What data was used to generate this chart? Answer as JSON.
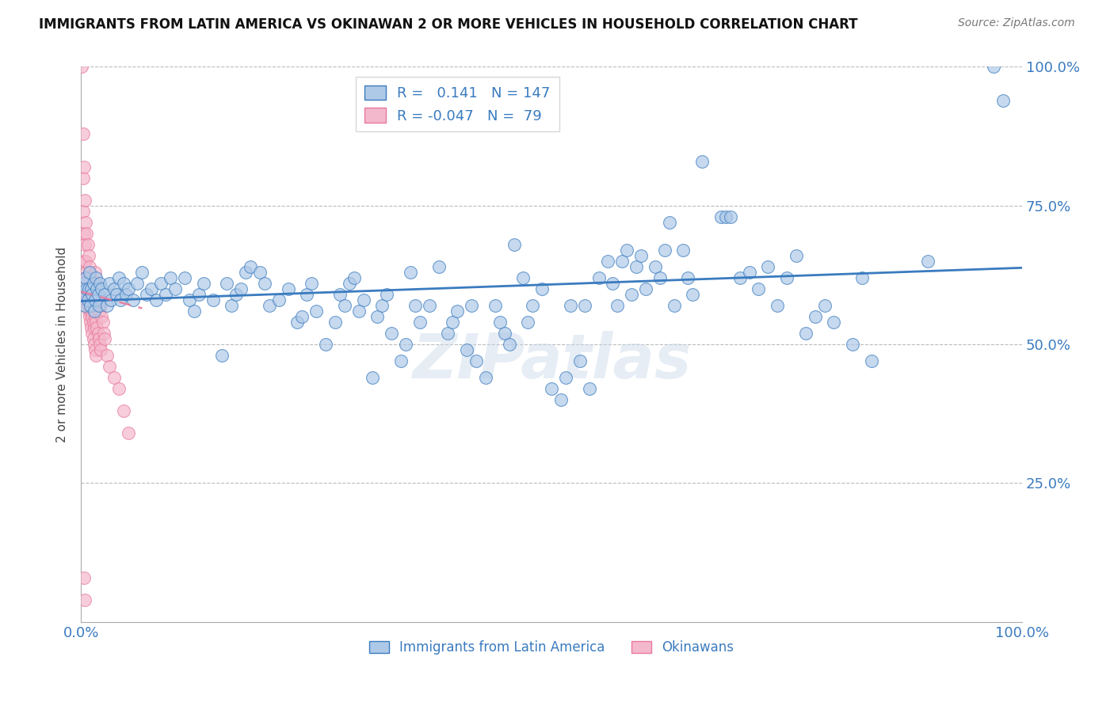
{
  "title": "IMMIGRANTS FROM LATIN AMERICA VS OKINAWAN 2 OR MORE VEHICLES IN HOUSEHOLD CORRELATION CHART",
  "source": "Source: ZipAtlas.com",
  "ylabel": "2 or more Vehicles in Household",
  "xlim": [
    0,
    1.0
  ],
  "ylim": [
    0,
    1.0
  ],
  "xticks": [
    0.0,
    0.25,
    0.5,
    0.75,
    1.0
  ],
  "xticklabels": [
    "0.0%",
    "",
    "",
    "",
    "100.0%"
  ],
  "ytick_positions": [
    0.25,
    0.5,
    0.75,
    1.0
  ],
  "ytick_labels": [
    "25.0%",
    "50.0%",
    "75.0%",
    "100.0%"
  ],
  "blue_R": 0.141,
  "blue_N": 147,
  "pink_R": -0.047,
  "pink_N": 79,
  "blue_color": "#aec9e8",
  "pink_color": "#f4b8cc",
  "blue_line_color": "#3a7bbf",
  "pink_line_color": "#e8799a",
  "watermark": "ZIPatlas",
  "legend_labels": [
    "Immigrants from Latin America",
    "Okinawans"
  ],
  "blue_scatter": [
    [
      0.002,
      0.61
    ],
    [
      0.003,
      0.59
    ],
    [
      0.004,
      0.57
    ],
    [
      0.005,
      0.62
    ],
    [
      0.006,
      0.6
    ],
    [
      0.007,
      0.58
    ],
    [
      0.008,
      0.6
    ],
    [
      0.009,
      0.63
    ],
    [
      0.01,
      0.57
    ],
    [
      0.011,
      0.6
    ],
    [
      0.012,
      0.59
    ],
    [
      0.013,
      0.61
    ],
    [
      0.014,
      0.56
    ],
    [
      0.015,
      0.58
    ],
    [
      0.016,
      0.62
    ],
    [
      0.017,
      0.6
    ],
    [
      0.018,
      0.59
    ],
    [
      0.019,
      0.57
    ],
    [
      0.02,
      0.61
    ],
    [
      0.022,
      0.6
    ],
    [
      0.025,
      0.59
    ],
    [
      0.028,
      0.57
    ],
    [
      0.03,
      0.61
    ],
    [
      0.032,
      0.58
    ],
    [
      0.035,
      0.6
    ],
    [
      0.038,
      0.59
    ],
    [
      0.04,
      0.62
    ],
    [
      0.042,
      0.58
    ],
    [
      0.045,
      0.61
    ],
    [
      0.048,
      0.59
    ],
    [
      0.05,
      0.6
    ],
    [
      0.055,
      0.58
    ],
    [
      0.06,
      0.61
    ],
    [
      0.065,
      0.63
    ],
    [
      0.07,
      0.59
    ],
    [
      0.075,
      0.6
    ],
    [
      0.08,
      0.58
    ],
    [
      0.085,
      0.61
    ],
    [
      0.09,
      0.59
    ],
    [
      0.095,
      0.62
    ],
    [
      0.1,
      0.6
    ],
    [
      0.11,
      0.62
    ],
    [
      0.115,
      0.58
    ],
    [
      0.12,
      0.56
    ],
    [
      0.125,
      0.59
    ],
    [
      0.13,
      0.61
    ],
    [
      0.14,
      0.58
    ],
    [
      0.15,
      0.48
    ],
    [
      0.155,
      0.61
    ],
    [
      0.16,
      0.57
    ],
    [
      0.165,
      0.59
    ],
    [
      0.17,
      0.6
    ],
    [
      0.175,
      0.63
    ],
    [
      0.18,
      0.64
    ],
    [
      0.19,
      0.63
    ],
    [
      0.195,
      0.61
    ],
    [
      0.2,
      0.57
    ],
    [
      0.21,
      0.58
    ],
    [
      0.22,
      0.6
    ],
    [
      0.23,
      0.54
    ],
    [
      0.235,
      0.55
    ],
    [
      0.24,
      0.59
    ],
    [
      0.245,
      0.61
    ],
    [
      0.25,
      0.56
    ],
    [
      0.26,
      0.5
    ],
    [
      0.27,
      0.54
    ],
    [
      0.275,
      0.59
    ],
    [
      0.28,
      0.57
    ],
    [
      0.285,
      0.61
    ],
    [
      0.29,
      0.62
    ],
    [
      0.295,
      0.56
    ],
    [
      0.3,
      0.58
    ],
    [
      0.31,
      0.44
    ],
    [
      0.315,
      0.55
    ],
    [
      0.32,
      0.57
    ],
    [
      0.325,
      0.59
    ],
    [
      0.33,
      0.52
    ],
    [
      0.34,
      0.47
    ],
    [
      0.345,
      0.5
    ],
    [
      0.35,
      0.63
    ],
    [
      0.355,
      0.57
    ],
    [
      0.36,
      0.54
    ],
    [
      0.37,
      0.57
    ],
    [
      0.38,
      0.64
    ],
    [
      0.39,
      0.52
    ],
    [
      0.395,
      0.54
    ],
    [
      0.4,
      0.56
    ],
    [
      0.41,
      0.49
    ],
    [
      0.415,
      0.57
    ],
    [
      0.42,
      0.47
    ],
    [
      0.43,
      0.44
    ],
    [
      0.44,
      0.57
    ],
    [
      0.445,
      0.54
    ],
    [
      0.45,
      0.52
    ],
    [
      0.455,
      0.5
    ],
    [
      0.46,
      0.68
    ],
    [
      0.47,
      0.62
    ],
    [
      0.475,
      0.54
    ],
    [
      0.48,
      0.57
    ],
    [
      0.49,
      0.6
    ],
    [
      0.5,
      0.42
    ],
    [
      0.51,
      0.4
    ],
    [
      0.515,
      0.44
    ],
    [
      0.52,
      0.57
    ],
    [
      0.53,
      0.47
    ],
    [
      0.535,
      0.57
    ],
    [
      0.54,
      0.42
    ],
    [
      0.55,
      0.62
    ],
    [
      0.56,
      0.65
    ],
    [
      0.565,
      0.61
    ],
    [
      0.57,
      0.57
    ],
    [
      0.575,
      0.65
    ],
    [
      0.58,
      0.67
    ],
    [
      0.585,
      0.59
    ],
    [
      0.59,
      0.64
    ],
    [
      0.595,
      0.66
    ],
    [
      0.6,
      0.6
    ],
    [
      0.61,
      0.64
    ],
    [
      0.615,
      0.62
    ],
    [
      0.62,
      0.67
    ],
    [
      0.625,
      0.72
    ],
    [
      0.63,
      0.57
    ],
    [
      0.64,
      0.67
    ],
    [
      0.645,
      0.62
    ],
    [
      0.65,
      0.59
    ],
    [
      0.66,
      0.83
    ],
    [
      0.68,
      0.73
    ],
    [
      0.685,
      0.73
    ],
    [
      0.69,
      0.73
    ],
    [
      0.7,
      0.62
    ],
    [
      0.71,
      0.63
    ],
    [
      0.72,
      0.6
    ],
    [
      0.73,
      0.64
    ],
    [
      0.74,
      0.57
    ],
    [
      0.75,
      0.62
    ],
    [
      0.76,
      0.66
    ],
    [
      0.77,
      0.52
    ],
    [
      0.78,
      0.55
    ],
    [
      0.79,
      0.57
    ],
    [
      0.8,
      0.54
    ],
    [
      0.82,
      0.5
    ],
    [
      0.83,
      0.62
    ],
    [
      0.84,
      0.47
    ],
    [
      0.9,
      0.65
    ],
    [
      0.97,
      1.0
    ],
    [
      0.98,
      0.94
    ]
  ],
  "pink_scatter": [
    [
      0.001,
      1.0
    ],
    [
      0.002,
      0.88
    ],
    [
      0.002,
      0.8
    ],
    [
      0.002,
      0.74
    ],
    [
      0.003,
      0.82
    ],
    [
      0.003,
      0.7
    ],
    [
      0.003,
      0.65
    ],
    [
      0.004,
      0.76
    ],
    [
      0.004,
      0.68
    ],
    [
      0.004,
      0.62
    ],
    [
      0.005,
      0.72
    ],
    [
      0.005,
      0.65
    ],
    [
      0.005,
      0.59
    ],
    [
      0.006,
      0.7
    ],
    [
      0.006,
      0.63
    ],
    [
      0.006,
      0.58
    ],
    [
      0.007,
      0.68
    ],
    [
      0.007,
      0.62
    ],
    [
      0.007,
      0.57
    ],
    [
      0.008,
      0.66
    ],
    [
      0.008,
      0.6
    ],
    [
      0.008,
      0.56
    ],
    [
      0.009,
      0.64
    ],
    [
      0.009,
      0.59
    ],
    [
      0.009,
      0.55
    ],
    [
      0.01,
      0.62
    ],
    [
      0.01,
      0.57
    ],
    [
      0.01,
      0.54
    ],
    [
      0.011,
      0.6
    ],
    [
      0.011,
      0.56
    ],
    [
      0.011,
      0.53
    ],
    [
      0.012,
      0.59
    ],
    [
      0.012,
      0.55
    ],
    [
      0.012,
      0.52
    ],
    [
      0.013,
      0.57
    ],
    [
      0.013,
      0.54
    ],
    [
      0.013,
      0.51
    ],
    [
      0.014,
      0.56
    ],
    [
      0.014,
      0.53
    ],
    [
      0.014,
      0.5
    ],
    [
      0.015,
      0.63
    ],
    [
      0.015,
      0.55
    ],
    [
      0.015,
      0.49
    ],
    [
      0.016,
      0.61
    ],
    [
      0.016,
      0.54
    ],
    [
      0.016,
      0.48
    ],
    [
      0.017,
      0.59
    ],
    [
      0.017,
      0.53
    ],
    [
      0.018,
      0.57
    ],
    [
      0.018,
      0.52
    ],
    [
      0.019,
      0.56
    ],
    [
      0.019,
      0.51
    ],
    [
      0.02,
      0.58
    ],
    [
      0.02,
      0.5
    ],
    [
      0.021,
      0.57
    ],
    [
      0.021,
      0.49
    ],
    [
      0.022,
      0.55
    ],
    [
      0.023,
      0.54
    ],
    [
      0.024,
      0.52
    ],
    [
      0.025,
      0.51
    ],
    [
      0.028,
      0.48
    ],
    [
      0.03,
      0.46
    ],
    [
      0.035,
      0.44
    ],
    [
      0.04,
      0.42
    ],
    [
      0.045,
      0.38
    ],
    [
      0.05,
      0.34
    ],
    [
      0.003,
      0.08
    ],
    [
      0.004,
      0.04
    ]
  ],
  "blue_line": [
    [
      0.0,
      0.578
    ],
    [
      1.0,
      0.638
    ]
  ],
  "pink_line": [
    [
      0.0,
      0.595
    ],
    [
      0.065,
      0.565
    ]
  ]
}
